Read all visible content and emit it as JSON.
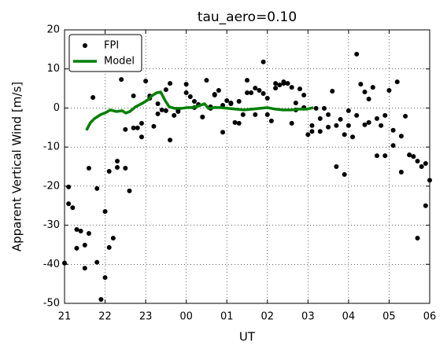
{
  "chart_data": {
    "type": "scatter",
    "title": "tau_aero=0.10",
    "x_label": "UT",
    "y_label": "Apparent Vertical Wind [m/s]",
    "xlim": [
      21,
      30
    ],
    "ylim": [
      -50,
      20
    ],
    "xticks": [
      21,
      22,
      23,
      {
        "value": 24,
        "label": "00"
      },
      {
        "value": 25,
        "label": "01"
      },
      {
        "value": 26,
        "label": "02"
      },
      {
        "value": 27,
        "label": "03"
      },
      {
        "value": 28,
        "label": "04"
      },
      {
        "value": 29,
        "label": "05"
      },
      {
        "value": 30,
        "label": "06"
      }
    ],
    "yticks": [
      -50,
      -40,
      -30,
      -20,
      -10,
      0,
      10,
      20
    ],
    "grid": true,
    "legend_loc": "upper left",
    "series": [
      {
        "name": "FPI",
        "type": "scatter",
        "color": "#000000",
        "x": [
          21.0,
          21.1,
          21.1,
          21.2,
          21.3,
          21.3,
          21.4,
          21.5,
          21.5,
          21.6,
          21.6,
          21.7,
          21.8,
          21.8,
          21.9,
          22.0,
          22.0,
          22.1,
          22.1,
          22.2,
          22.3,
          22.3,
          22.4,
          22.5,
          22.5,
          22.6,
          22.7,
          22.7,
          22.8,
          22.9,
          22.9,
          23.0,
          23.1,
          23.1,
          23.2,
          23.3,
          23.3,
          23.4,
          23.5,
          23.5,
          23.6,
          23.6,
          23.7,
          23.8,
          23.8,
          24.0,
          24.0,
          24.1,
          24.2,
          24.2,
          24.3,
          24.4,
          24.4,
          24.5,
          24.6,
          24.6,
          24.7,
          24.7,
          24.8,
          24.9,
          24.9,
          25.0,
          25.1,
          25.1,
          25.2,
          25.3,
          25.3,
          25.4,
          25.5,
          25.5,
          25.6,
          25.7,
          25.7,
          25.8,
          25.9,
          25.9,
          26.0,
          26.0,
          26.1,
          26.2,
          26.2,
          26.3,
          26.4,
          26.4,
          26.5,
          26.6,
          26.6,
          26.7,
          26.7,
          26.8,
          26.9,
          26.9,
          27.0,
          27.1,
          27.1,
          27.2,
          27.3,
          27.3,
          27.4,
          27.5,
          27.5,
          27.6,
          27.7,
          27.7,
          27.8,
          27.9,
          27.9,
          28.0,
          28.0,
          28.1,
          28.2,
          28.2,
          28.3,
          28.4,
          28.4,
          28.5,
          28.5,
          28.6,
          28.7,
          28.7,
          28.8,
          28.9,
          28.9,
          29.0,
          29.1,
          29.1,
          29.2,
          29.3,
          29.3,
          29.4,
          29.5,
          29.5,
          29.6,
          29.7,
          29.7,
          29.8,
          29.9,
          29.9,
          30.0
        ],
        "values": [
          -39.7,
          -24.5,
          -20.2,
          -25.5,
          -35.9,
          -31.1,
          -31.5,
          -35.1,
          -41.0,
          -15.4,
          -32.1,
          2.7,
          -20.6,
          -39.5,
          -49.0,
          -43.4,
          -26.5,
          -35.7,
          -16.2,
          -33.3,
          -13.6,
          -15.2,
          7.3,
          -5.5,
          -15.4,
          -21.2,
          -5.1,
          3.1,
          -5.1,
          -7.4,
          -3.9,
          6.9,
          2.5,
          3.1,
          -4.7,
          1.1,
          -1.5,
          -0.5,
          4.7,
          -0.7,
          -8.2,
          6.3,
          -1.9,
          -0.9,
          -0.5,
          6.1,
          3.9,
          2.9,
          0.1,
          1.7,
          0.9,
          -2.3,
          -2.3,
          7.1,
          -0.1,
          0.3,
          3.3,
          3.5,
          4.5,
          0.7,
          -6.2,
          1.9,
          1.3,
          1.1,
          -3.7,
          1.7,
          -3.9,
          -1.7,
          3.9,
          7.1,
          3.9,
          -1.7,
          5.1,
          4.5,
          3.7,
          11.8,
          2.5,
          -1.7,
          -3.3,
          6.3,
          5.1,
          5.9,
          6.3,
          6.7,
          6.3,
          5.3,
          -3.9,
          -0.5,
          1.3,
          4.9,
          0.1,
          3.3,
          -6.8,
          -6.0,
          -4.5,
          -0.1,
          -6.0,
          -2.7,
          -0.1,
          -4.9,
          -1.7,
          4.3,
          -4.5,
          -15.0,
          -2.9,
          -17.0,
          -6.8,
          -0.7,
          -4.5,
          -7.4,
          -1.9,
          13.8,
          6.1,
          -4.3,
          4.1,
          2.3,
          -3.7,
          5.3,
          -2.7,
          -12.2,
          -4.5,
          -1.9,
          -12.2,
          4.5,
          -9.6,
          -5.7,
          6.7,
          -7.2,
          -16.4,
          -2.1,
          -12.0,
          -12.0,
          -12.4,
          -33.3,
          -13.6,
          -15.0,
          -25.0,
          -14.2,
          -18.5
        ]
      },
      {
        "name": "Model",
        "type": "line",
        "color": "#007f00",
        "x": [
          21.54,
          21.64,
          21.74,
          21.89,
          22.03,
          22.13,
          22.28,
          22.42,
          22.51,
          22.61,
          22.75,
          22.9,
          23.06,
          23.15,
          23.27,
          23.37,
          23.48,
          23.58,
          23.72,
          23.87,
          24.03,
          24.16,
          24.3,
          24.45,
          24.55,
          24.69,
          24.84,
          25.03,
          25.23,
          25.42,
          25.62,
          25.81,
          26.0,
          26.2,
          26.39,
          26.59,
          26.78,
          26.97,
          27.13
        ],
        "values": [
          -5.7,
          -3.7,
          -2.7,
          -1.7,
          -1.1,
          -0.5,
          -0.9,
          -0.7,
          -1.3,
          -0.9,
          0.3,
          1.1,
          2.1,
          3.1,
          3.9,
          4.1,
          1.9,
          0.3,
          -0.1,
          -0.1,
          0.1,
          0.1,
          0.5,
          1.1,
          -0.1,
          0.1,
          0.1,
          -0.1,
          -0.3,
          -0.5,
          -0.3,
          -0.1,
          0.1,
          -0.3,
          -0.5,
          -0.5,
          -0.3,
          -0.3,
          0.1
        ]
      }
    ]
  }
}
